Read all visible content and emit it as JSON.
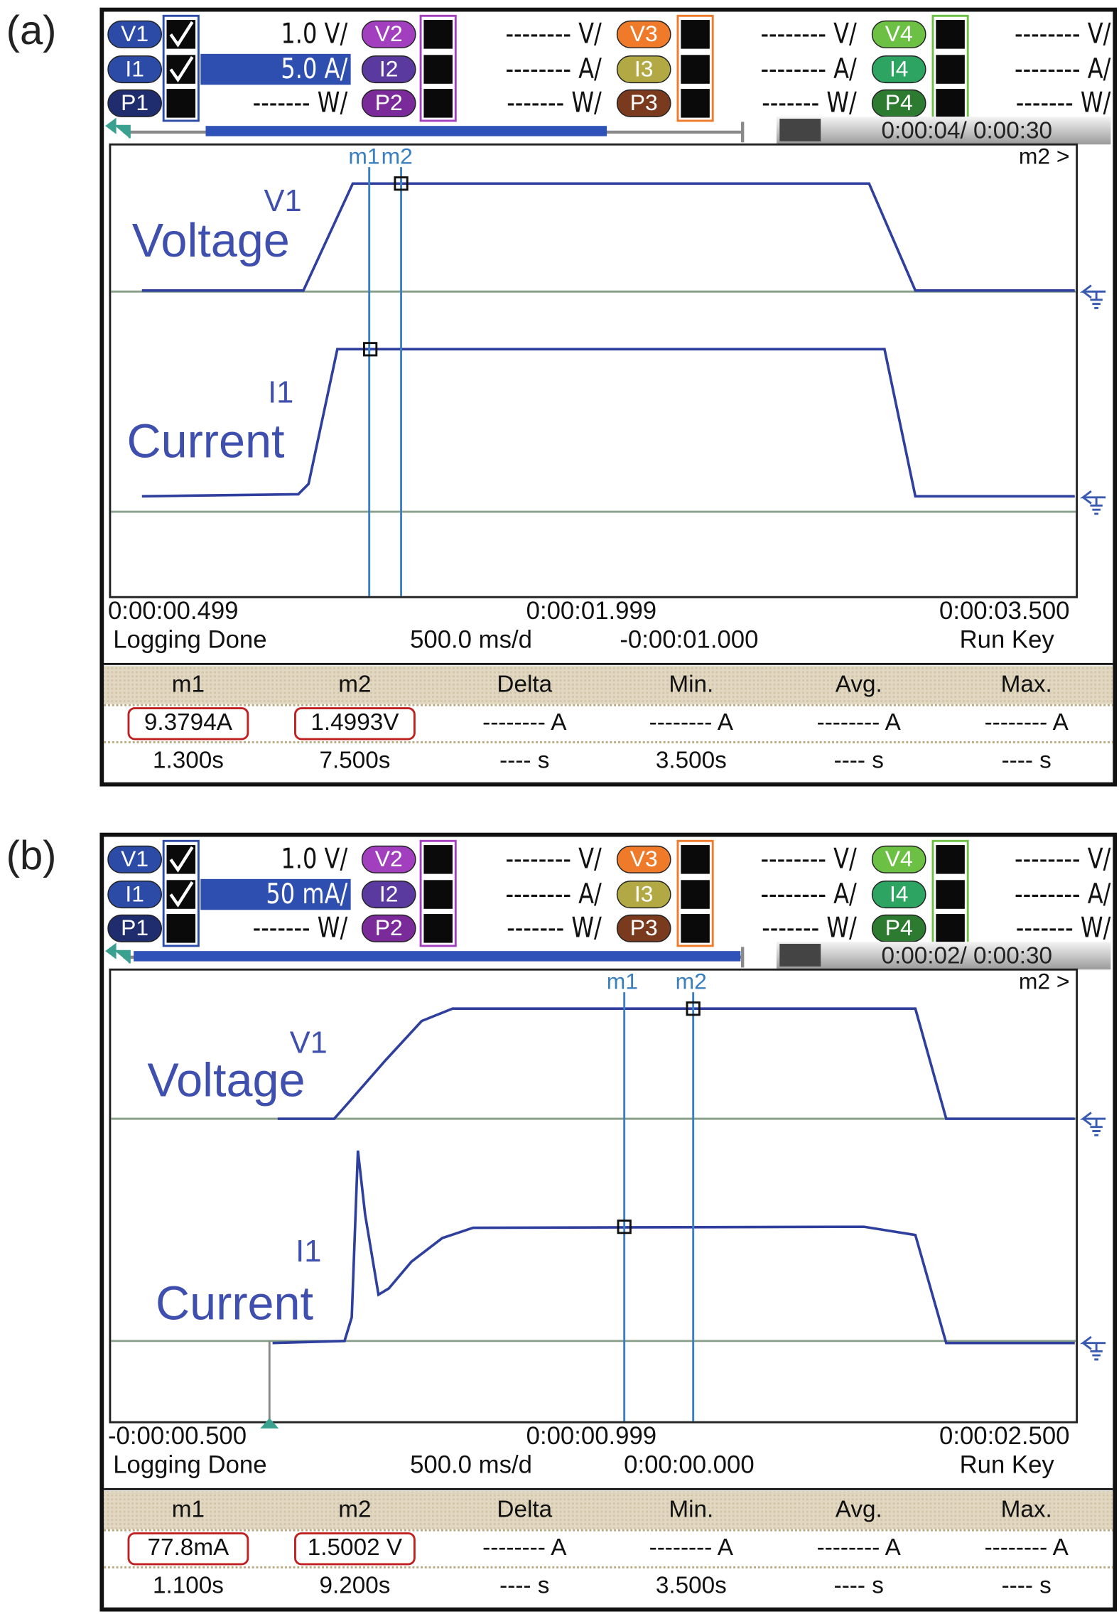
{
  "panels": [
    {
      "label": "(a)",
      "channels": [
        [
          "V1",
          "1.0 V/",
          "V2",
          "-------- V/",
          "V3",
          "-------- V/",
          "V4",
          "-------- V/"
        ],
        [
          "I1",
          "5.0 A/",
          "I2",
          "-------- A/",
          "I3",
          "-------- A/",
          "I4",
          "-------- A/"
        ],
        [
          "P1",
          "------- W/",
          "P2",
          "------- W/",
          "P3",
          "------- W/",
          "P4",
          "------- W/"
        ]
      ],
      "time": "0:00:04/ 0:00:30",
      "markers": [
        "m1",
        "m2"
      ],
      "marker_next": "m2 >",
      "traces": [
        {
          "name": "V1",
          "label": "Voltage"
        },
        {
          "name": "I1",
          "label": "Current"
        }
      ],
      "time_axis": [
        "0:00:00.499",
        "0:00:01.999",
        "0:00:03.500"
      ],
      "status": [
        "Logging Done",
        "500.0 ms/d",
        "-0:00:01.000",
        "Run Key"
      ],
      "table": {
        "header": [
          "m1",
          "m2",
          "Delta",
          "Min.",
          "Avg.",
          "Max."
        ],
        "rows": [
          [
            "9.3794A",
            "1.4993V",
            "-------- A",
            "-------- A",
            "-------- A",
            "-------- A"
          ],
          [
            "1.300s",
            "7.500s",
            "---- s",
            "3.500s",
            "---- s",
            "---- s"
          ]
        ]
      }
    },
    {
      "label": "(b)",
      "channels": [
        [
          "V1",
          "1.0 V/",
          "V2",
          "-------- V/",
          "V3",
          "-------- V/",
          "V4",
          "-------- V/"
        ],
        [
          "I1",
          "50 mA/",
          "I2",
          "-------- A/",
          "I3",
          "-------- A/",
          "I4",
          "-------- A/"
        ],
        [
          "P1",
          "------- W/",
          "P2",
          "------- W/",
          "P3",
          "------- W/",
          "P4",
          "------- W/"
        ]
      ],
      "time": "0:00:02/ 0:00:30",
      "markers": [
        "m1",
        "m2"
      ],
      "marker_next": "m2 >",
      "traces": [
        {
          "name": "V1",
          "label": "Voltage"
        },
        {
          "name": "I1",
          "label": "Current"
        }
      ],
      "time_axis": [
        "-0:00:00.500",
        "0:00:00.999",
        "0:00:02.500"
      ],
      "status": [
        "Logging Done",
        "500.0 ms/d",
        "0:00:00.000",
        "Run Key"
      ],
      "table": {
        "header": [
          "m1",
          "m2",
          "Delta",
          "Min.",
          "Avg.",
          "Max."
        ],
        "rows": [
          [
            "77.8mA",
            "1.5002 V",
            "-------- A",
            "-------- A",
            "-------- A",
            "-------- A"
          ],
          [
            "1.100s",
            "9.200s",
            "---- s",
            "3.500s",
            "---- s",
            "---- s"
          ]
        ]
      }
    }
  ]
}
